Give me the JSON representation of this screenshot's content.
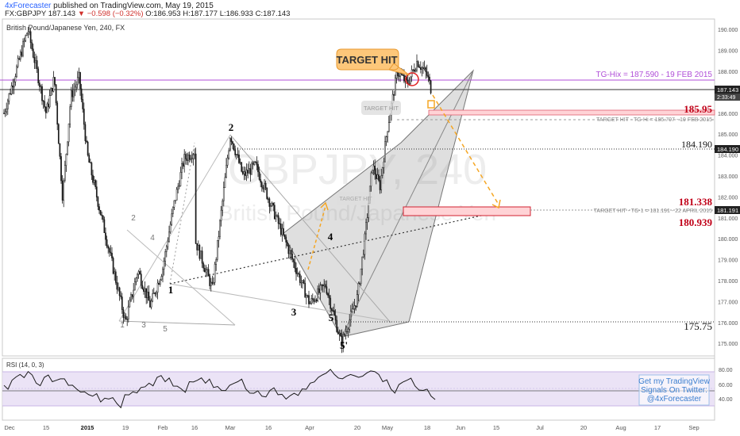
{
  "header": {
    "publisher": "4xForecaster",
    "published_text": "published on TradingView.com, May 19, 2015",
    "symbol": "FX:GBPJPY",
    "last": "187.143",
    "change": "▼ −0.598 (−0.32%)",
    "open": "O:186.953",
    "high": "H:187.177",
    "low": "L:186.933",
    "close": "C:187.143"
  },
  "chart_title": "British Pound/Japanese Yen, 240, FX",
  "watermark": {
    "symbol": "GBPJPY, 240",
    "name": "British Pound/Japanese Yen"
  },
  "callout": "TARGET HIT",
  "ghost_labels": [
    "TARGET HIT",
    "TARGET HIT"
  ],
  "levels": {
    "tg_hix": "TG-Hix = 187.590 - 19 FEB 2015",
    "l18595": "185.95",
    "l18595_note": "TARGET HIT - TG-Hi = 185.707 - 19 FEB 2015",
    "l184190": "184.190",
    "l181338": "181.338",
    "l181338_note": "TARGET HIT - TG-1 = 181.191 - 22 APRIL 2015",
    "l180939": "180.939",
    "l17575": "175.75"
  },
  "price_tags": {
    "last": "187.143",
    "countdown": "2:33:49",
    "l184190": "184.190",
    "l181191": "181.191"
  },
  "wave_labels": {
    "big": [
      "2",
      "1",
      "3",
      "4",
      "5",
      "5'"
    ],
    "small": [
      "1",
      "2",
      "3",
      "4",
      "5"
    ]
  },
  "rsi": {
    "label": "RSI (14, 0, 3)",
    "ticks": [
      "80.00",
      "60.00",
      "40.00"
    ],
    "promo": [
      "Get my TradingView",
      "Signals On Twitter:",
      "@4xForecaster"
    ]
  },
  "colors": {
    "candle": "#1a1a1a",
    "purple_line": "#b04fd8",
    "red_label": "#c00018",
    "orange": "#f5a623",
    "callout_fill": "#fdc77a",
    "rsi_band": "#e8def5",
    "rsi_line": "#1a1a1a",
    "promo_blue": "#3b7ecf"
  },
  "chart_data": {
    "type": "candlestick",
    "title": "British Pound/Japanese Yen, 240, FX",
    "timeframe": "240",
    "ylim": [
      174.4,
      190.5
    ],
    "y_ticks": [
      190,
      189,
      188,
      187,
      186,
      185,
      184,
      183,
      182,
      181,
      180,
      179,
      178,
      177,
      176,
      175
    ],
    "x_ticks": [
      "Dec",
      "15",
      "2015",
      "19",
      "Feb",
      "16",
      "Mar",
      "16",
      "Apr",
      "20",
      "May",
      "18",
      "Jun",
      "15",
      "Jul",
      "20",
      "Aug",
      "17",
      "Sep"
    ],
    "price_path": [
      [
        "Dec",
        186.0
      ],
      [
        "Dec",
        190.0
      ],
      [
        "15",
        186.0
      ],
      [
        "15",
        187.7
      ],
      [
        "15",
        182.0
      ],
      [
        "15",
        186.8
      ],
      [
        "15",
        187.7
      ],
      [
        "2015",
        184.0
      ],
      [
        "2015",
        180.0
      ],
      [
        "19",
        176.0
      ],
      [
        "19",
        178.5
      ],
      [
        "19",
        176.8
      ],
      [
        "Feb",
        178.6
      ],
      [
        "Feb",
        181.5
      ],
      [
        "Feb",
        183.8
      ],
      [
        "16",
        184.2
      ],
      [
        "Mar",
        185.0
      ],
      [
        "Mar",
        183.0
      ],
      [
        "Mar",
        183.5
      ],
      [
        "16",
        180.0
      ],
      [
        "16",
        177.6
      ],
      [
        "Apr",
        176.9
      ],
      [
        "Apr",
        177.8
      ],
      [
        "Apr",
        175.0
      ],
      [
        "20",
        177.2
      ],
      [
        "20",
        180.0
      ],
      [
        "20",
        183.5
      ],
      [
        "20",
        182.5
      ],
      [
        "May",
        185.3
      ],
      [
        "May",
        188.0
      ],
      [
        "May",
        187.4
      ],
      [
        "May",
        188.5
      ],
      [
        "18",
        187.8
      ],
      [
        "18",
        187.143
      ]
    ],
    "last_price": 187.143,
    "levels": [
      187.59,
      185.95,
      184.19,
      181.338,
      180.939,
      175.75
    ],
    "projection": {
      "from": 186.2,
      "to": 181.3
    },
    "rsi_ticks": [
      80,
      60,
      40
    ],
    "rsi_series": [
      55,
      62,
      70,
      74,
      58,
      66,
      60,
      64,
      55,
      50,
      46,
      40,
      32,
      36,
      30,
      42,
      46,
      52,
      58,
      66,
      60,
      54,
      50,
      60,
      62,
      58,
      52,
      48,
      55,
      60,
      50,
      44,
      40,
      48,
      42,
      36,
      44,
      50,
      58,
      66,
      72,
      70,
      64,
      70,
      66,
      72,
      74,
      60,
      50,
      56,
      62,
      54,
      48,
      40
    ]
  }
}
